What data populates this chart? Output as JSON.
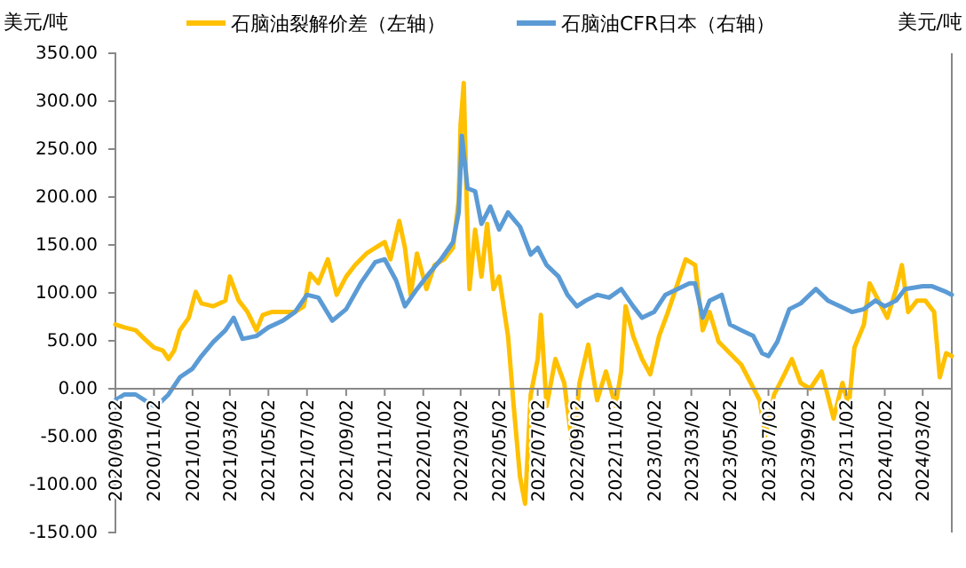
{
  "chart_data": {
    "type": "line",
    "ylabel": "美元/吨",
    "y2label": "美元/吨",
    "legend": "top",
    "grid": false,
    "line_style": "solid",
    "marker": "none",
    "xlim": [
      "2020-09-02",
      "2024-04-17"
    ],
    "xticks": [
      {
        "value": "2020-09-02",
        "label": "2020/09/02"
      },
      {
        "value": "2020-11-02",
        "label": "2020/11/02"
      },
      {
        "value": "2021-01-02",
        "label": "2021/01/02"
      },
      {
        "value": "2021-03-02",
        "label": "2021/03/02"
      },
      {
        "value": "2021-05-02",
        "label": "2021/05/02"
      },
      {
        "value": "2021-07-02",
        "label": "2021/07/02"
      },
      {
        "value": "2021-09-02",
        "label": "2021/09/02"
      },
      {
        "value": "2021-11-02",
        "label": "2021/11/02"
      },
      {
        "value": "2022-01-02",
        "label": "2022/01/02"
      },
      {
        "value": "2022-03-02",
        "label": "2022/03/02"
      },
      {
        "value": "2022-05-02",
        "label": "2022/05/02"
      },
      {
        "value": "2022-07-02",
        "label": "2022/07/02"
      },
      {
        "value": "2022-09-02",
        "label": "2022/09/02"
      },
      {
        "value": "2022-11-02",
        "label": "2022/11/02"
      },
      {
        "value": "2023-01-02",
        "label": "2023/01/02"
      },
      {
        "value": "2023-03-02",
        "label": "2023/03/02"
      },
      {
        "value": "2023-05-02",
        "label": "2023/05/02"
      },
      {
        "value": "2023-07-02",
        "label": "2023/07/02"
      },
      {
        "value": "2023-09-02",
        "label": "2023/09/02"
      },
      {
        "value": "2023-11-02",
        "label": "2023/11/02"
      },
      {
        "value": "2024-01-02",
        "label": "2024/01/02"
      },
      {
        "value": "2024-03-02",
        "label": "2024/03/02"
      }
    ],
    "ylim": [
      -150,
      350
    ],
    "yticks": [
      {
        "value": -150,
        "label": "-150.00"
      },
      {
        "value": -100,
        "label": "-100.00"
      },
      {
        "value": -50,
        "label": "-50.00"
      },
      {
        "value": 0,
        "label": "0.00"
      },
      {
        "value": 50,
        "label": "50.00"
      },
      {
        "value": 100,
        "label": "100.00"
      },
      {
        "value": 150,
        "label": "150.00"
      },
      {
        "value": 200,
        "label": "200.00"
      },
      {
        "value": 250,
        "label": "250.00"
      },
      {
        "value": 300,
        "label": "300.00"
      },
      {
        "value": 350,
        "label": "350.00"
      }
    ],
    "series": [
      {
        "name": "石脑油裂解价差（左轴）",
        "color": "#ffc000",
        "x": [
          "2020-09-02",
          "2020-09-16",
          "2020-10-04",
          "2020-10-18",
          "2020-11-02",
          "2020-11-16",
          "2020-11-25",
          "2020-12-04",
          "2020-12-13",
          "2020-12-27",
          "2021-01-07",
          "2021-01-16",
          "2021-02-04",
          "2021-02-23",
          "2021-03-02",
          "2021-03-16",
          "2021-03-30",
          "2021-04-13",
          "2021-04-23",
          "2021-05-07",
          "2021-05-25",
          "2021-06-13",
          "2021-06-27",
          "2021-07-07",
          "2021-07-20",
          "2021-08-04",
          "2021-08-18",
          "2021-09-02",
          "2021-09-16",
          "2021-10-04",
          "2021-10-18",
          "2021-11-02",
          "2021-11-11",
          "2021-11-25",
          "2021-12-04",
          "2021-12-13",
          "2021-12-23",
          "2022-01-07",
          "2022-01-20",
          "2022-02-04",
          "2022-02-18",
          "2022-02-27",
          "2022-03-02",
          "2022-03-07",
          "2022-03-11",
          "2022-03-16",
          "2022-03-25",
          "2022-04-04",
          "2022-04-13",
          "2022-04-23",
          "2022-05-02",
          "2022-05-16",
          "2022-05-25",
          "2022-06-04",
          "2022-06-12",
          "2022-06-21",
          "2022-07-02",
          "2022-07-07",
          "2022-07-16",
          "2022-07-30",
          "2022-08-13",
          "2022-08-27",
          "2022-09-06",
          "2022-09-20",
          "2022-10-04",
          "2022-10-18",
          "2022-11-02",
          "2022-11-11",
          "2022-11-18",
          "2022-11-30",
          "2022-12-14",
          "2022-12-27",
          "2023-01-10",
          "2023-01-24",
          "2023-02-12",
          "2023-02-21",
          "2023-03-08",
          "2023-03-20",
          "2023-03-31",
          "2023-04-14",
          "2023-05-02",
          "2023-05-20",
          "2023-06-04",
          "2023-06-18",
          "2023-06-27",
          "2023-07-11",
          "2023-07-25",
          "2023-08-08",
          "2023-08-22",
          "2023-09-06",
          "2023-09-24",
          "2023-10-13",
          "2023-10-27",
          "2023-11-06",
          "2023-11-15",
          "2023-11-30",
          "2023-12-09",
          "2023-12-23",
          "2024-01-06",
          "2024-01-20",
          "2024-01-29",
          "2024-02-08",
          "2024-02-22",
          "2024-03-06",
          "2024-03-20",
          "2024-03-29",
          "2024-04-08",
          "2024-04-17"
        ],
        "values": [
          67,
          64,
          61,
          52,
          43,
          40,
          31,
          40,
          61,
          74,
          101,
          89,
          86,
          92,
          117,
          92,
          80,
          61,
          77,
          80,
          80,
          80,
          86,
          120,
          110,
          135,
          98,
          117,
          129,
          141,
          147,
          153,
          135,
          175,
          147,
          98,
          141,
          104,
          129,
          135,
          147,
          196,
          276,
          319,
          209,
          104,
          166,
          117,
          172,
          104,
          117,
          55,
          -18,
          -92,
          -120,
          -6,
          31,
          77,
          -18,
          31,
          6,
          -67,
          6,
          46,
          -12,
          18,
          -18,
          18,
          86,
          55,
          31,
          15,
          55,
          80,
          117,
          135,
          129,
          61,
          80,
          49,
          37,
          25,
          6,
          -12,
          -49,
          -6,
          12,
          31,
          6,
          0,
          18,
          -31,
          6,
          -18,
          43,
          67,
          110,
          92,
          74,
          104,
          129,
          80,
          92,
          92,
          80,
          12,
          37,
          34
        ]
      },
      {
        "name": "石脑油CFR日本（右轴）",
        "color": "#5b9bd5",
        "x": [
          "2020-09-02",
          "2020-09-16",
          "2020-10-04",
          "2020-10-18",
          "2020-11-02",
          "2020-11-11",
          "2020-11-25",
          "2020-12-13",
          "2021-01-02",
          "2021-01-16",
          "2021-02-04",
          "2021-02-23",
          "2021-03-08",
          "2021-03-22",
          "2021-04-13",
          "2021-05-02",
          "2021-05-25",
          "2021-06-13",
          "2021-07-02",
          "2021-07-20",
          "2021-08-11",
          "2021-09-02",
          "2021-09-25",
          "2021-10-18",
          "2021-11-02",
          "2021-11-20",
          "2021-12-04",
          "2021-12-23",
          "2022-01-11",
          "2022-01-30",
          "2022-02-18",
          "2022-02-27",
          "2022-03-04",
          "2022-03-13",
          "2022-03-25",
          "2022-04-04",
          "2022-04-18",
          "2022-05-02",
          "2022-05-16",
          "2022-06-04",
          "2022-06-21",
          "2022-07-02",
          "2022-07-16",
          "2022-08-04",
          "2022-08-18",
          "2022-09-02",
          "2022-09-16",
          "2022-10-04",
          "2022-10-23",
          "2022-11-11",
          "2022-11-30",
          "2022-12-14",
          "2023-01-02",
          "2023-01-20",
          "2023-02-08",
          "2023-02-27",
          "2023-03-08",
          "2023-03-20",
          "2023-03-31",
          "2023-04-19",
          "2023-05-02",
          "2023-05-20",
          "2023-06-08",
          "2023-06-22",
          "2023-07-02",
          "2023-07-16",
          "2023-08-04",
          "2023-08-22",
          "2023-09-15",
          "2023-10-04",
          "2023-10-23",
          "2023-11-11",
          "2023-11-30",
          "2023-12-18",
          "2024-01-02",
          "2024-01-20",
          "2024-02-03",
          "2024-03-02",
          "2024-03-16",
          "2024-04-08",
          "2024-04-17"
        ],
        "values": [
          -12,
          -6,
          -6,
          -12,
          -18,
          -15,
          -6,
          12,
          21,
          34,
          49,
          61,
          74,
          52,
          55,
          64,
          71,
          80,
          98,
          95,
          71,
          83,
          110,
          132,
          135,
          113,
          86,
          104,
          120,
          135,
          153,
          184,
          264,
          209,
          206,
          172,
          190,
          166,
          184,
          169,
          140,
          147,
          129,
          117,
          98,
          86,
          92,
          98,
          95,
          104,
          86,
          74,
          80,
          98,
          104,
          110,
          110,
          74,
          92,
          98,
          67,
          61,
          55,
          37,
          34,
          49,
          83,
          89,
          104,
          92,
          86,
          80,
          83,
          92,
          86,
          92,
          104,
          107,
          107,
          101,
          98
        ]
      }
    ]
  }
}
